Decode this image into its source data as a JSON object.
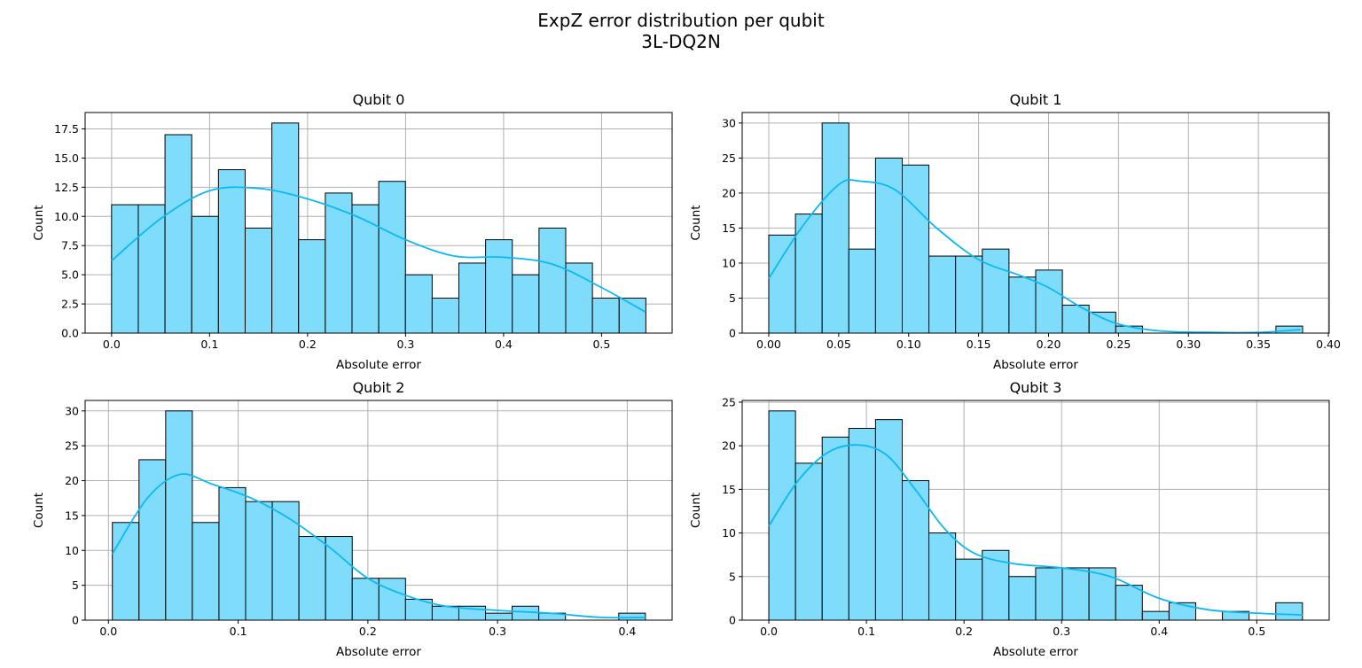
{
  "figure": {
    "title_line1": "ExpZ error distribution per qubit",
    "title_line2": "3L-DQ2N"
  },
  "colors": {
    "bar_fill": "#80dcfb",
    "bar_edge": "#000000",
    "kde_line": "#0db8f0",
    "grid": "#b0b0b0"
  },
  "chart_data": [
    {
      "type": "bar",
      "title": "Qubit 0",
      "xlabel": "Absolute error",
      "ylabel": "Count",
      "grid": true,
      "bin_start": 0.0,
      "bin_width": 0.02726,
      "counts": [
        11,
        11,
        17,
        10,
        14,
        9,
        18,
        8,
        12,
        11,
        13,
        5,
        3,
        6,
        8,
        5,
        9,
        6,
        3,
        3
      ],
      "kde": [
        [
          0.0,
          6.2
        ],
        [
          0.05,
          9.8
        ],
        [
          0.1,
          12.2
        ],
        [
          0.15,
          12.4
        ],
        [
          0.2,
          11.5
        ],
        [
          0.25,
          10.0
        ],
        [
          0.3,
          8.0
        ],
        [
          0.35,
          6.6
        ],
        [
          0.4,
          6.5
        ],
        [
          0.45,
          5.9
        ],
        [
          0.5,
          3.9
        ],
        [
          0.545,
          1.8
        ]
      ],
      "xlim": [
        -0.027,
        0.572
      ],
      "ylim": [
        0,
        18.9
      ],
      "xticks": [
        0.0,
        0.1,
        0.2,
        0.3,
        0.4,
        0.5
      ],
      "xtick_labels": [
        "0.0",
        "0.1",
        "0.2",
        "0.3",
        "0.4",
        "0.5"
      ],
      "yticks": [
        0,
        2.5,
        5,
        7.5,
        10,
        12.5,
        15,
        17.5
      ],
      "ytick_labels": [
        "0.0",
        "2.5",
        "5.0",
        "7.5",
        "10.0",
        "12.5",
        "15.0",
        "17.5"
      ]
    },
    {
      "type": "bar",
      "title": "Qubit 1",
      "xlabel": "Absolute error",
      "ylabel": "Count",
      "grid": true,
      "bin_start": 0.0,
      "bin_width": 0.01908,
      "counts": [
        14,
        17,
        30,
        12,
        25,
        24,
        11,
        11,
        12,
        8,
        9,
        4,
        3,
        1,
        0,
        0,
        0,
        0,
        0,
        1
      ],
      "kde": [
        [
          0.0,
          7.8
        ],
        [
          0.025,
          15.5
        ],
        [
          0.05,
          21.2
        ],
        [
          0.065,
          21.7
        ],
        [
          0.09,
          20.5
        ],
        [
          0.12,
          15.0
        ],
        [
          0.15,
          10.5
        ],
        [
          0.18,
          8.2
        ],
        [
          0.2,
          6.5
        ],
        [
          0.225,
          3.5
        ],
        [
          0.25,
          1.3
        ],
        [
          0.28,
          0.3
        ],
        [
          0.32,
          0.1
        ],
        [
          0.35,
          0.1
        ],
        [
          0.38,
          0.5
        ]
      ],
      "xlim": [
        -0.019,
        0.4006
      ],
      "ylim": [
        0,
        31.5
      ],
      "xticks": [
        0.0,
        0.05,
        0.1,
        0.15,
        0.2,
        0.25,
        0.3,
        0.35,
        0.4
      ],
      "xtick_labels": [
        "0.00",
        "0.05",
        "0.10",
        "0.15",
        "0.20",
        "0.25",
        "0.30",
        "0.35",
        "0.40"
      ],
      "yticks": [
        0,
        5,
        10,
        15,
        20,
        25,
        30
      ],
      "ytick_labels": [
        "0",
        "5",
        "10",
        "15",
        "20",
        "25",
        "30"
      ]
    },
    {
      "type": "bar",
      "title": "Qubit 2",
      "xlabel": "Absolute error",
      "ylabel": "Count",
      "grid": true,
      "bin_start": 0.003,
      "bin_width": 0.02055,
      "counts": [
        14,
        23,
        30,
        14,
        19,
        17,
        17,
        12,
        12,
        6,
        6,
        3,
        2,
        2,
        1,
        2,
        1,
        0,
        0,
        1
      ],
      "kde": [
        [
          0.003,
          9.5
        ],
        [
          0.03,
          17.5
        ],
        [
          0.055,
          20.9
        ],
        [
          0.08,
          19.5
        ],
        [
          0.11,
          17.5
        ],
        [
          0.14,
          14.5
        ],
        [
          0.17,
          10.5
        ],
        [
          0.2,
          6.0
        ],
        [
          0.23,
          3.5
        ],
        [
          0.26,
          2.0
        ],
        [
          0.3,
          1.4
        ],
        [
          0.34,
          1.0
        ],
        [
          0.38,
          0.4
        ],
        [
          0.414,
          0.4
        ]
      ],
      "xlim": [
        -0.018,
        0.4346
      ],
      "ylim": [
        0,
        31.5
      ],
      "xticks": [
        0.0,
        0.1,
        0.2,
        0.3,
        0.4
      ],
      "xtick_labels": [
        "0.0",
        "0.1",
        "0.2",
        "0.3",
        "0.4"
      ],
      "yticks": [
        0,
        5,
        10,
        15,
        20,
        25,
        30
      ],
      "ytick_labels": [
        "0",
        "5",
        "10",
        "15",
        "20",
        "25",
        "30"
      ]
    },
    {
      "type": "bar",
      "title": "Qubit 3",
      "xlabel": "Absolute error",
      "ylabel": "Count",
      "grid": true,
      "bin_start": 0.0,
      "bin_width": 0.02734,
      "counts": [
        24,
        18,
        21,
        22,
        23,
        16,
        10,
        7,
        8,
        5,
        6,
        6,
        6,
        4,
        1,
        2,
        0,
        1,
        0,
        2
      ],
      "kde": [
        [
          0.0,
          10.8
        ],
        [
          0.03,
          16.0
        ],
        [
          0.06,
          19.2
        ],
        [
          0.09,
          20.1
        ],
        [
          0.12,
          19.0
        ],
        [
          0.15,
          15.0
        ],
        [
          0.18,
          10.5
        ],
        [
          0.21,
          7.7
        ],
        [
          0.25,
          6.5
        ],
        [
          0.3,
          6.0
        ],
        [
          0.35,
          5.0
        ],
        [
          0.4,
          2.5
        ],
        [
          0.45,
          1.2
        ],
        [
          0.5,
          0.8
        ],
        [
          0.547,
          0.6
        ]
      ],
      "xlim": [
        -0.0273,
        0.5742
      ],
      "ylim": [
        0,
        25.2
      ],
      "xticks": [
        0.0,
        0.1,
        0.2,
        0.3,
        0.4,
        0.5
      ],
      "xtick_labels": [
        "0.0",
        "0.1",
        "0.2",
        "0.3",
        "0.4",
        "0.5"
      ],
      "yticks": [
        0,
        5,
        10,
        15,
        20,
        25
      ],
      "ytick_labels": [
        "0",
        "5",
        "10",
        "15",
        "20",
        "25"
      ]
    }
  ]
}
